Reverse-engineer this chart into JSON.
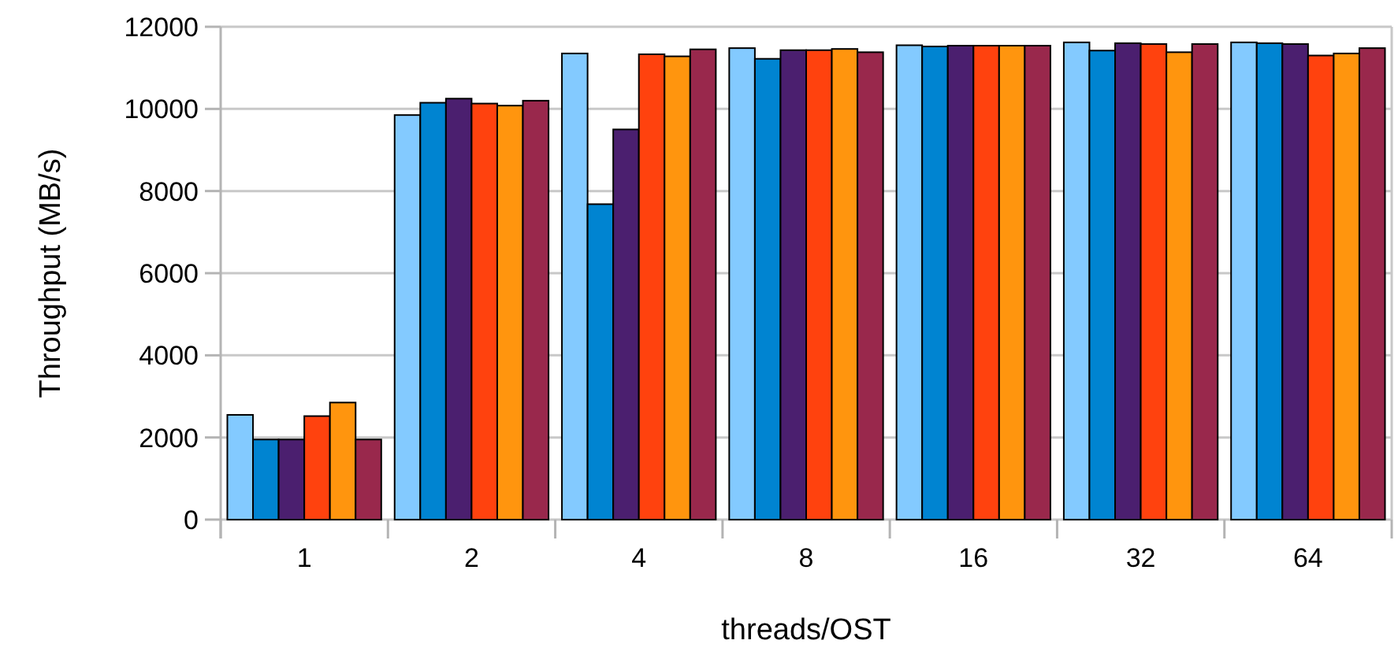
{
  "chart_data": {
    "type": "bar",
    "xlabel": "threads/OST",
    "ylabel": "Throughput (MB/s)",
    "categories": [
      "1",
      "2",
      "4",
      "8",
      "16",
      "32",
      "64"
    ],
    "series": [
      {
        "color": "#83caff",
        "values": [
          2550,
          9850,
          11350,
          11480,
          11550,
          11620,
          11620
        ]
      },
      {
        "color": "#0084d1",
        "values": [
          1950,
          10150,
          7680,
          11220,
          11520,
          11420,
          11600
        ]
      },
      {
        "color": "#4b1f6f",
        "values": [
          1950,
          10250,
          9500,
          11430,
          11540,
          11600,
          11580
        ]
      },
      {
        "color": "#ff420e",
        "values": [
          2520,
          10130,
          11330,
          11430,
          11540,
          11580,
          11300
        ]
      },
      {
        "color": "#ff950e",
        "values": [
          2850,
          10080,
          11280,
          11460,
          11540,
          11380,
          11350
        ]
      },
      {
        "color": "#99284c",
        "values": [
          1950,
          10200,
          11450,
          11380,
          11540,
          11580,
          11480
        ]
      }
    ],
    "ylim": [
      0,
      12000
    ],
    "yticks": [
      0,
      2000,
      4000,
      6000,
      8000,
      10000,
      12000
    ],
    "grid": "y"
  }
}
